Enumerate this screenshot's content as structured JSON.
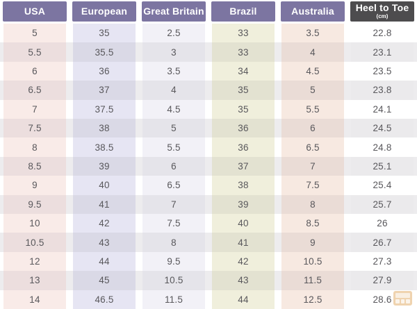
{
  "chart_data": {
    "type": "table",
    "columns": [
      {
        "key": "usa",
        "label": "USA"
      },
      {
        "key": "european",
        "label": "European"
      },
      {
        "key": "great-britain",
        "label": "Great Britain"
      },
      {
        "key": "brazil",
        "label": "Brazil"
      },
      {
        "key": "australia",
        "label": "Australia"
      },
      {
        "key": "heel-to-toe",
        "label": "Heel to Toe",
        "sublabel": "(cm)"
      }
    ],
    "rows": [
      [
        "5",
        "35",
        "2.5",
        "33",
        "3.5",
        "22.8"
      ],
      [
        "5.5",
        "35.5",
        "3",
        "33",
        "4",
        "23.1"
      ],
      [
        "6",
        "36",
        "3.5",
        "34",
        "4.5",
        "23.5"
      ],
      [
        "6.5",
        "37",
        "4",
        "35",
        "5",
        "23.8"
      ],
      [
        "7",
        "37.5",
        "4.5",
        "35",
        "5.5",
        "24.1"
      ],
      [
        "7.5",
        "38",
        "5",
        "36",
        "6",
        "24.5"
      ],
      [
        "8",
        "38.5",
        "5.5",
        "36",
        "6.5",
        "24.8"
      ],
      [
        "8.5",
        "39",
        "6",
        "37",
        "7",
        "25.1"
      ],
      [
        "9",
        "40",
        "6.5",
        "38",
        "7.5",
        "25.4"
      ],
      [
        "9.5",
        "41",
        "7",
        "39",
        "8",
        "25.7"
      ],
      [
        "10",
        "42",
        "7.5",
        "40",
        "8.5",
        "26"
      ],
      [
        "10.5",
        "43",
        "8",
        "41",
        "9",
        "26.7"
      ],
      [
        "12",
        "44",
        "9.5",
        "42",
        "10.5",
        "27.3"
      ],
      [
        "13",
        "45",
        "10.5",
        "43",
        "11.5",
        "27.9"
      ],
      [
        "14",
        "46.5",
        "11.5",
        "44",
        "12.5",
        "28.6"
      ]
    ]
  },
  "colors": {
    "header_bg": "#7c75a1",
    "header_heel_bg": "#4d4c4e",
    "header_text": "#ffffff",
    "cell_text": "#58575b",
    "row_gap": "#ffffff",
    "row_gap_alt": "#edecee",
    "column_tints": [
      "#f9ebe8",
      "#e6e5f3",
      "#f2f1f7",
      "#f0efdc",
      "#f7e9e1",
      "#ffffff"
    ],
    "column_tints_alt": [
      "#ecdede",
      "#dad9e6",
      "#e5e4ea",
      "#e3e2d1",
      "#eadcd6",
      "#ebeaec"
    ],
    "watermark": "#dd9f4f"
  }
}
